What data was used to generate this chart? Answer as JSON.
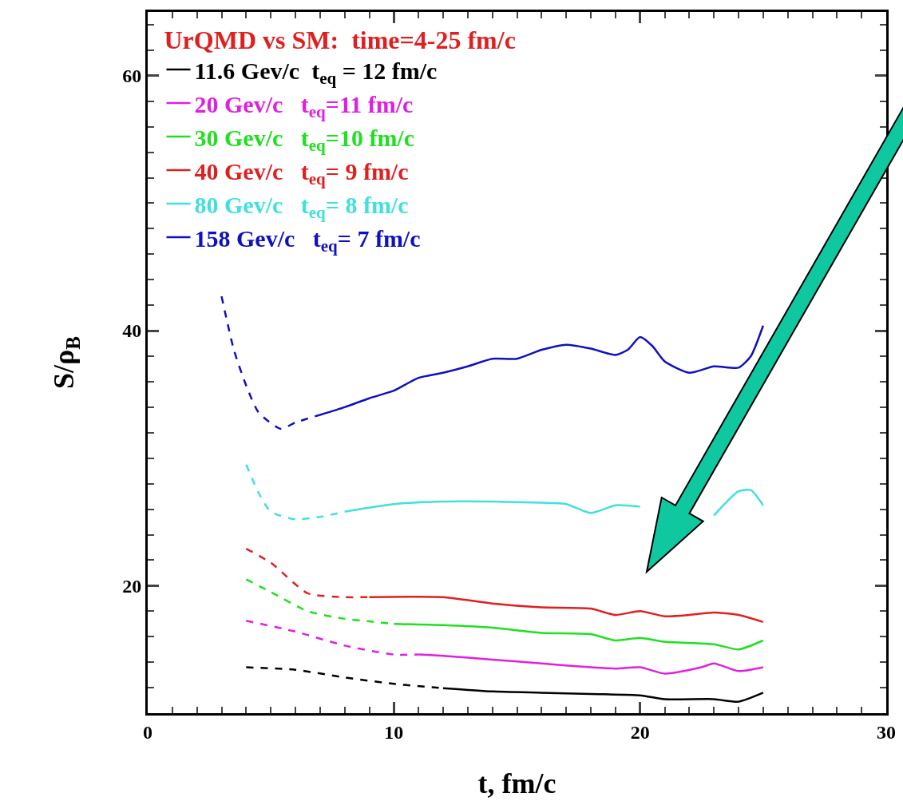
{
  "chart_data": {
    "type": "line",
    "xlabel": "t, fm/c",
    "ylabel": "S/ρ$_{B}$",
    "legend_title": "UrQMD vs SM:  time=4-25 fm/c",
    "legend": "top left",
    "grid": false,
    "xlim": [
      0,
      30
    ],
    "xticks": [
      0,
      10,
      20,
      30
    ],
    "ylim": [
      10,
      65
    ],
    "yticks": [
      20,
      40,
      60
    ],
    "series": [
      {
        "name": "11.6 Gev/c  t$_{eq}$ = 12 fm/c",
        "color": "#000000",
        "line_style": "solid",
        "x": [
          12,
          14,
          16,
          18,
          20,
          21,
          23,
          24,
          25
        ],
        "values": [
          11.96,
          11.7,
          11.6,
          11.5,
          11.4,
          11.1,
          11.1,
          10.9,
          11.6
        ]
      },
      {
        "name": "20 Gev/c   t$_{eq}$=11 fm/c",
        "color": "#e020e0",
        "line_style": "solid",
        "x": [
          11,
          12,
          14,
          16,
          18,
          19,
          20,
          21,
          22.5,
          23,
          24,
          25
        ],
        "values": [
          14.6,
          14.5,
          14.2,
          13.9,
          13.6,
          13.5,
          13.6,
          13.1,
          13.6,
          13.9,
          13.3,
          13.6
        ]
      },
      {
        "name": "30 Gev/c   t$_{eq}$=10 fm/c",
        "color": "#20e020",
        "line_style": "solid",
        "x": [
          10,
          12,
          14,
          16,
          18,
          19,
          20,
          21,
          23,
          24,
          25
        ],
        "values": [
          17.0,
          16.9,
          16.7,
          16.3,
          16.2,
          15.7,
          15.9,
          15.6,
          15.4,
          15.0,
          15.7
        ]
      },
      {
        "name": "40 Gev/c   t$_{eq}$= 9 fm/c",
        "color": "#e02020",
        "line_style": "solid",
        "x": [
          9,
          12,
          14,
          16,
          18,
          19,
          20,
          21,
          22,
          23,
          24,
          25
        ],
        "values": [
          19.1,
          19.1,
          18.6,
          18.3,
          18.2,
          17.7,
          18.0,
          17.6,
          17.7,
          17.9,
          17.7,
          17.15
        ]
      },
      {
        "name": "80 Gev/c   t$_{eq}$= 8 fm/c",
        "color": "#40e0e0",
        "line_style": "solid",
        "x": [
          8,
          10,
          12,
          14,
          16,
          17,
          18,
          19,
          20,
          21,
          22,
          23,
          24,
          24.5,
          25
        ],
        "values": [
          25.8,
          26.4,
          26.6,
          26.6,
          26.5,
          26.4,
          25.7,
          26.3,
          26.2,
          null,
          null,
          25.5,
          27.4,
          27.5,
          26.3
        ]
      },
      {
        "name": "158 Gev/c   t$_{eq}$= 7 fm/c",
        "color": "#1010c0",
        "line_style": "solid",
        "x": [
          7,
          8,
          9,
          10,
          11,
          12,
          13,
          14,
          15,
          16,
          17,
          18,
          19,
          19.5,
          20,
          20.5,
          21,
          22,
          23,
          24,
          24.5,
          25
        ],
        "values": [
          33.4,
          34.0,
          34.7,
          35.3,
          36.3,
          36.7,
          37.2,
          37.8,
          37.8,
          38.5,
          38.9,
          38.6,
          38.1,
          38.5,
          39.5,
          38.8,
          37.6,
          36.7,
          37.2,
          37.1,
          38.0,
          40.4
        ]
      },
      {
        "color": "#000000",
        "line_style": "dashed",
        "x": [
          4,
          6,
          8,
          10,
          12
        ],
        "values": [
          13.6,
          13.4,
          12.8,
          12.3,
          11.96
        ]
      },
      {
        "color": "#e020e0",
        "line_style": "dashed",
        "x": [
          4,
          6,
          8,
          10,
          11
        ],
        "values": [
          17.25,
          16.4,
          15.3,
          14.6,
          14.6
        ]
      },
      {
        "color": "#20e020",
        "line_style": "dashed",
        "x": [
          4,
          5,
          6.5,
          8,
          9,
          10
        ],
        "values": [
          20.5,
          19.5,
          18.0,
          17.4,
          17.2,
          17.0
        ]
      },
      {
        "color": "#e02020",
        "line_style": "dashed",
        "x": [
          4,
          5,
          6.5,
          8,
          9
        ],
        "values": [
          22.9,
          21.8,
          19.4,
          19.1,
          19.1
        ]
      },
      {
        "color": "#40e0e0",
        "line_style": "dashed",
        "x": [
          4,
          4.5,
          5,
          6,
          7,
          8
        ],
        "values": [
          29.5,
          27.3,
          25.8,
          25.2,
          25.4,
          25.8
        ]
      },
      {
        "color": "#1010c0",
        "line_style": "dashed",
        "x": [
          3,
          3.5,
          4,
          4.5,
          5.4,
          6,
          7
        ],
        "values": [
          42.7,
          38.5,
          35.7,
          33.6,
          32.3,
          32.8,
          33.4
        ]
      }
    ]
  }
}
